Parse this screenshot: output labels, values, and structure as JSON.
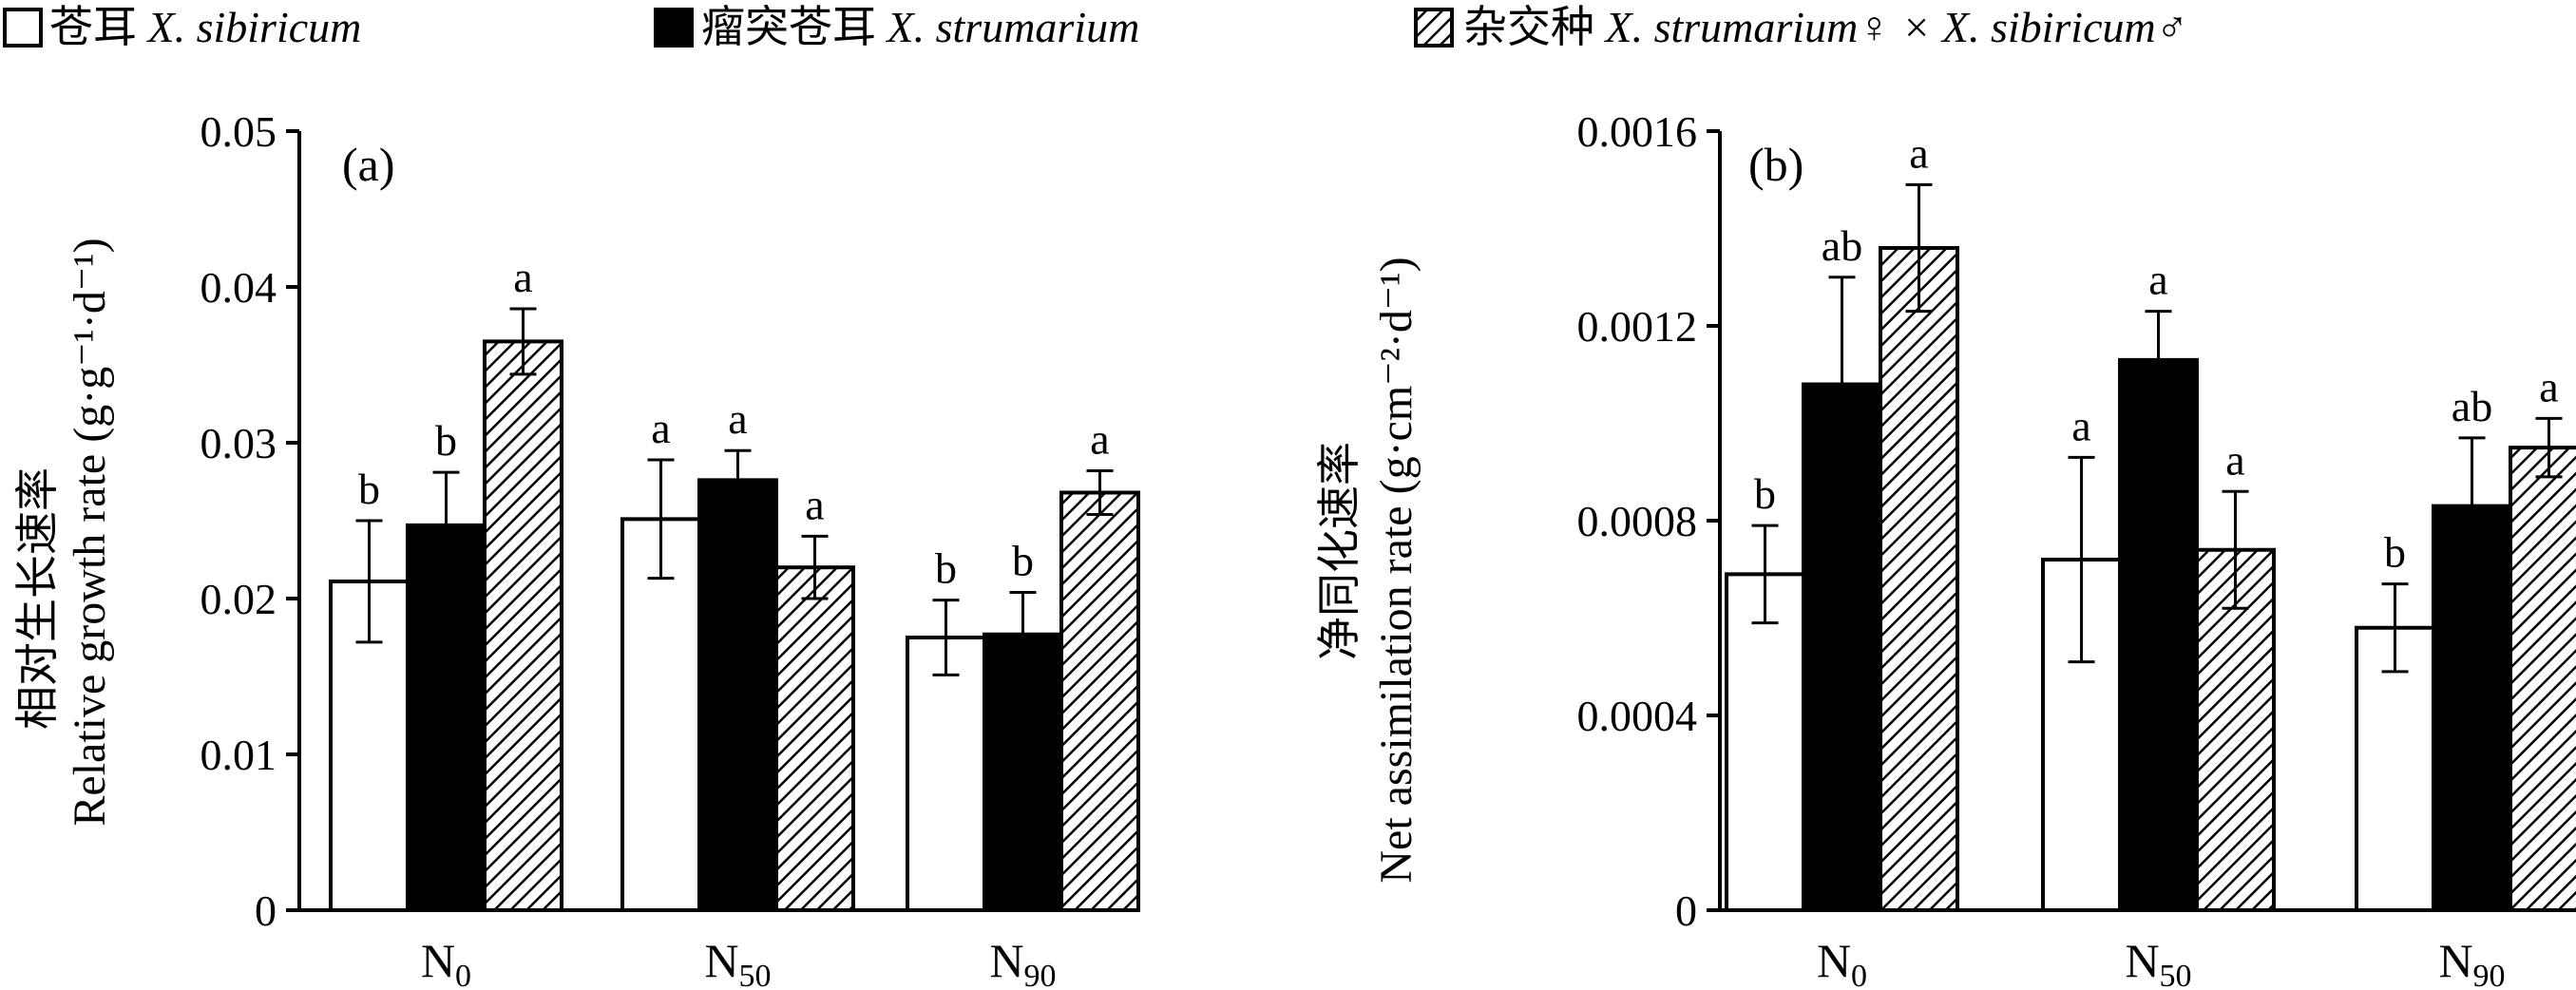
{
  "legend": {
    "items": [
      {
        "cn": "苍耳",
        "latin": "X. sibiricum",
        "pattern": "white"
      },
      {
        "cn": "瘤突苍耳",
        "latin_italic": "X.",
        "latin": "strumarium",
        "pattern": "black"
      },
      {
        "cn": "杂交种",
        "latin": "X. strumarium♀ × X. sibiricum♂",
        "pattern": "hatched"
      }
    ]
  },
  "colors": {
    "white_bar": "#ffffff",
    "black_bar": "#000000",
    "outline": "#000000"
  },
  "chart_data": [
    {
      "type": "bar",
      "panel_label": "(a)",
      "ylabel_cn": "相对生长速率",
      "ylabel_en": "Relative growth rate (g·g⁻¹·d⁻¹)",
      "ylim": [
        0,
        0.05
      ],
      "yticks": [
        "0",
        "0.01",
        "0.02",
        "0.03",
        "0.04",
        "0.05"
      ],
      "categories": [
        "N0",
        "N50",
        "N90"
      ],
      "category_main": [
        "N",
        "N",
        "N"
      ],
      "category_sub": [
        "0",
        "50",
        "90"
      ],
      "series": [
        {
          "name": "X. sibiricum",
          "values": [
            0.0211,
            0.0251,
            0.0175
          ],
          "errors": [
            0.0039,
            0.0038,
            0.0024
          ],
          "letters": [
            "b",
            "a",
            "b"
          ]
        },
        {
          "name": "X. strumarium",
          "values": [
            0.0247,
            0.0276,
            0.0177
          ],
          "errors": [
            0.0034,
            0.0019,
            0.0027
          ],
          "letters": [
            "b",
            "a",
            "b"
          ]
        },
        {
          "name": "X. strumarium♀ × X. sibiricum♂",
          "values": [
            0.0365,
            0.022,
            0.0268
          ],
          "errors": [
            0.0021,
            0.002,
            0.0014
          ],
          "letters": [
            "a",
            "a",
            "a"
          ]
        }
      ]
    },
    {
      "type": "bar",
      "panel_label": "(b)",
      "ylabel_cn": "净同化速率",
      "ylabel_en": "Net assimilation rate (g·cm⁻²·d⁻¹)",
      "ylim": [
        0,
        0.0016
      ],
      "yticks": [
        "0",
        "0.0004",
        "0.0008",
        "0.0012",
        "0.0016"
      ],
      "categories": [
        "N0",
        "N50",
        "N90"
      ],
      "category_main": [
        "N",
        "N",
        "N"
      ],
      "category_sub": [
        "0",
        "50",
        "90"
      ],
      "series": [
        {
          "name": "X. sibiricum",
          "values": [
            0.00069,
            0.00072,
            0.00058
          ],
          "errors": [
            0.0001,
            0.00021,
            9e-05
          ],
          "letters": [
            "b",
            "a",
            "b"
          ]
        },
        {
          "name": "X. strumarium",
          "values": [
            0.00108,
            0.00113,
            0.00083
          ],
          "errors": [
            0.00022,
            0.0001,
            0.00014
          ],
          "letters": [
            "ab",
            "a",
            "ab"
          ]
        },
        {
          "name": "X. strumarium♀ × X. sibiricum♂",
          "values": [
            0.00136,
            0.00074,
            0.00095
          ],
          "errors": [
            0.00013,
            0.00012,
            6e-05
          ],
          "letters": [
            "a",
            "a",
            "a"
          ]
        }
      ]
    }
  ]
}
